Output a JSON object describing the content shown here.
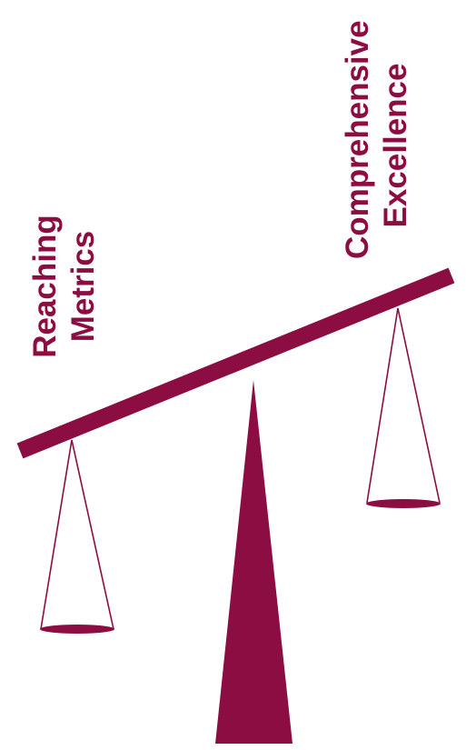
{
  "labels": {
    "left": [
      "Reaching",
      "Metrics"
    ],
    "right": [
      "Comprehensive",
      "Excellence"
    ]
  },
  "colors": {
    "accent": "#8b0d42",
    "background": "#ffffff"
  }
}
